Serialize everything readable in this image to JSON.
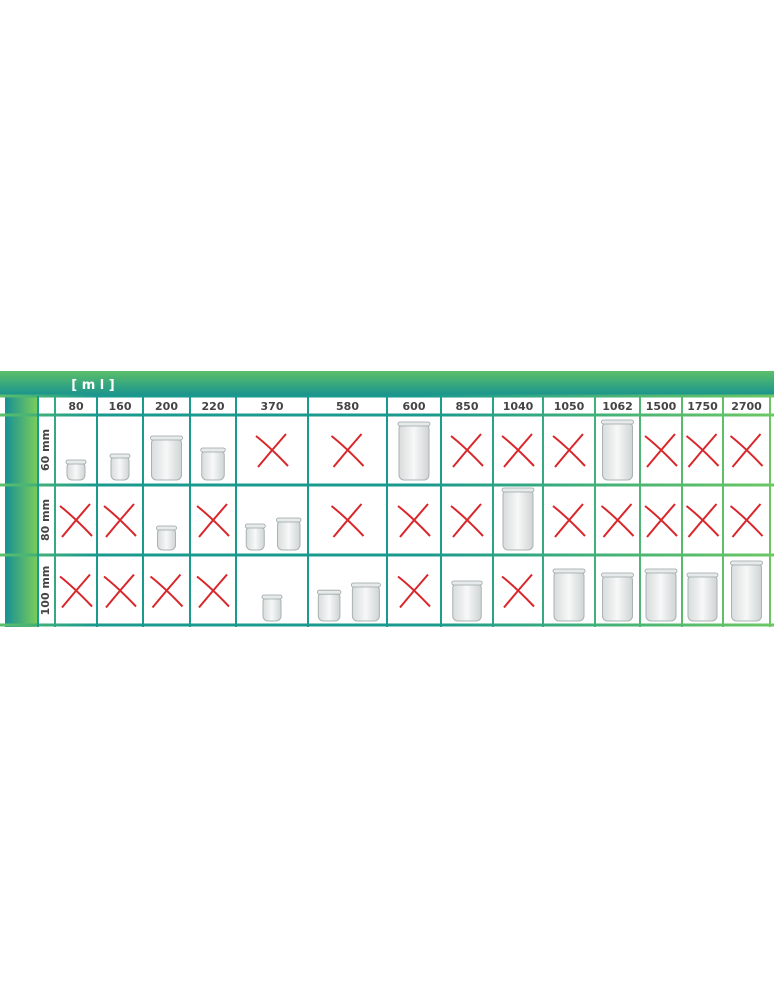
{
  "header": {
    "unit_label": "[ m l ]"
  },
  "columns": [
    "80",
    "160",
    "200",
    "220",
    "370",
    "580",
    "600",
    "850",
    "1040",
    "1050",
    "1062",
    "1500",
    "1750",
    "2700"
  ],
  "rows": [
    "60 mm",
    "80 mm",
    "100 mm"
  ]
}
